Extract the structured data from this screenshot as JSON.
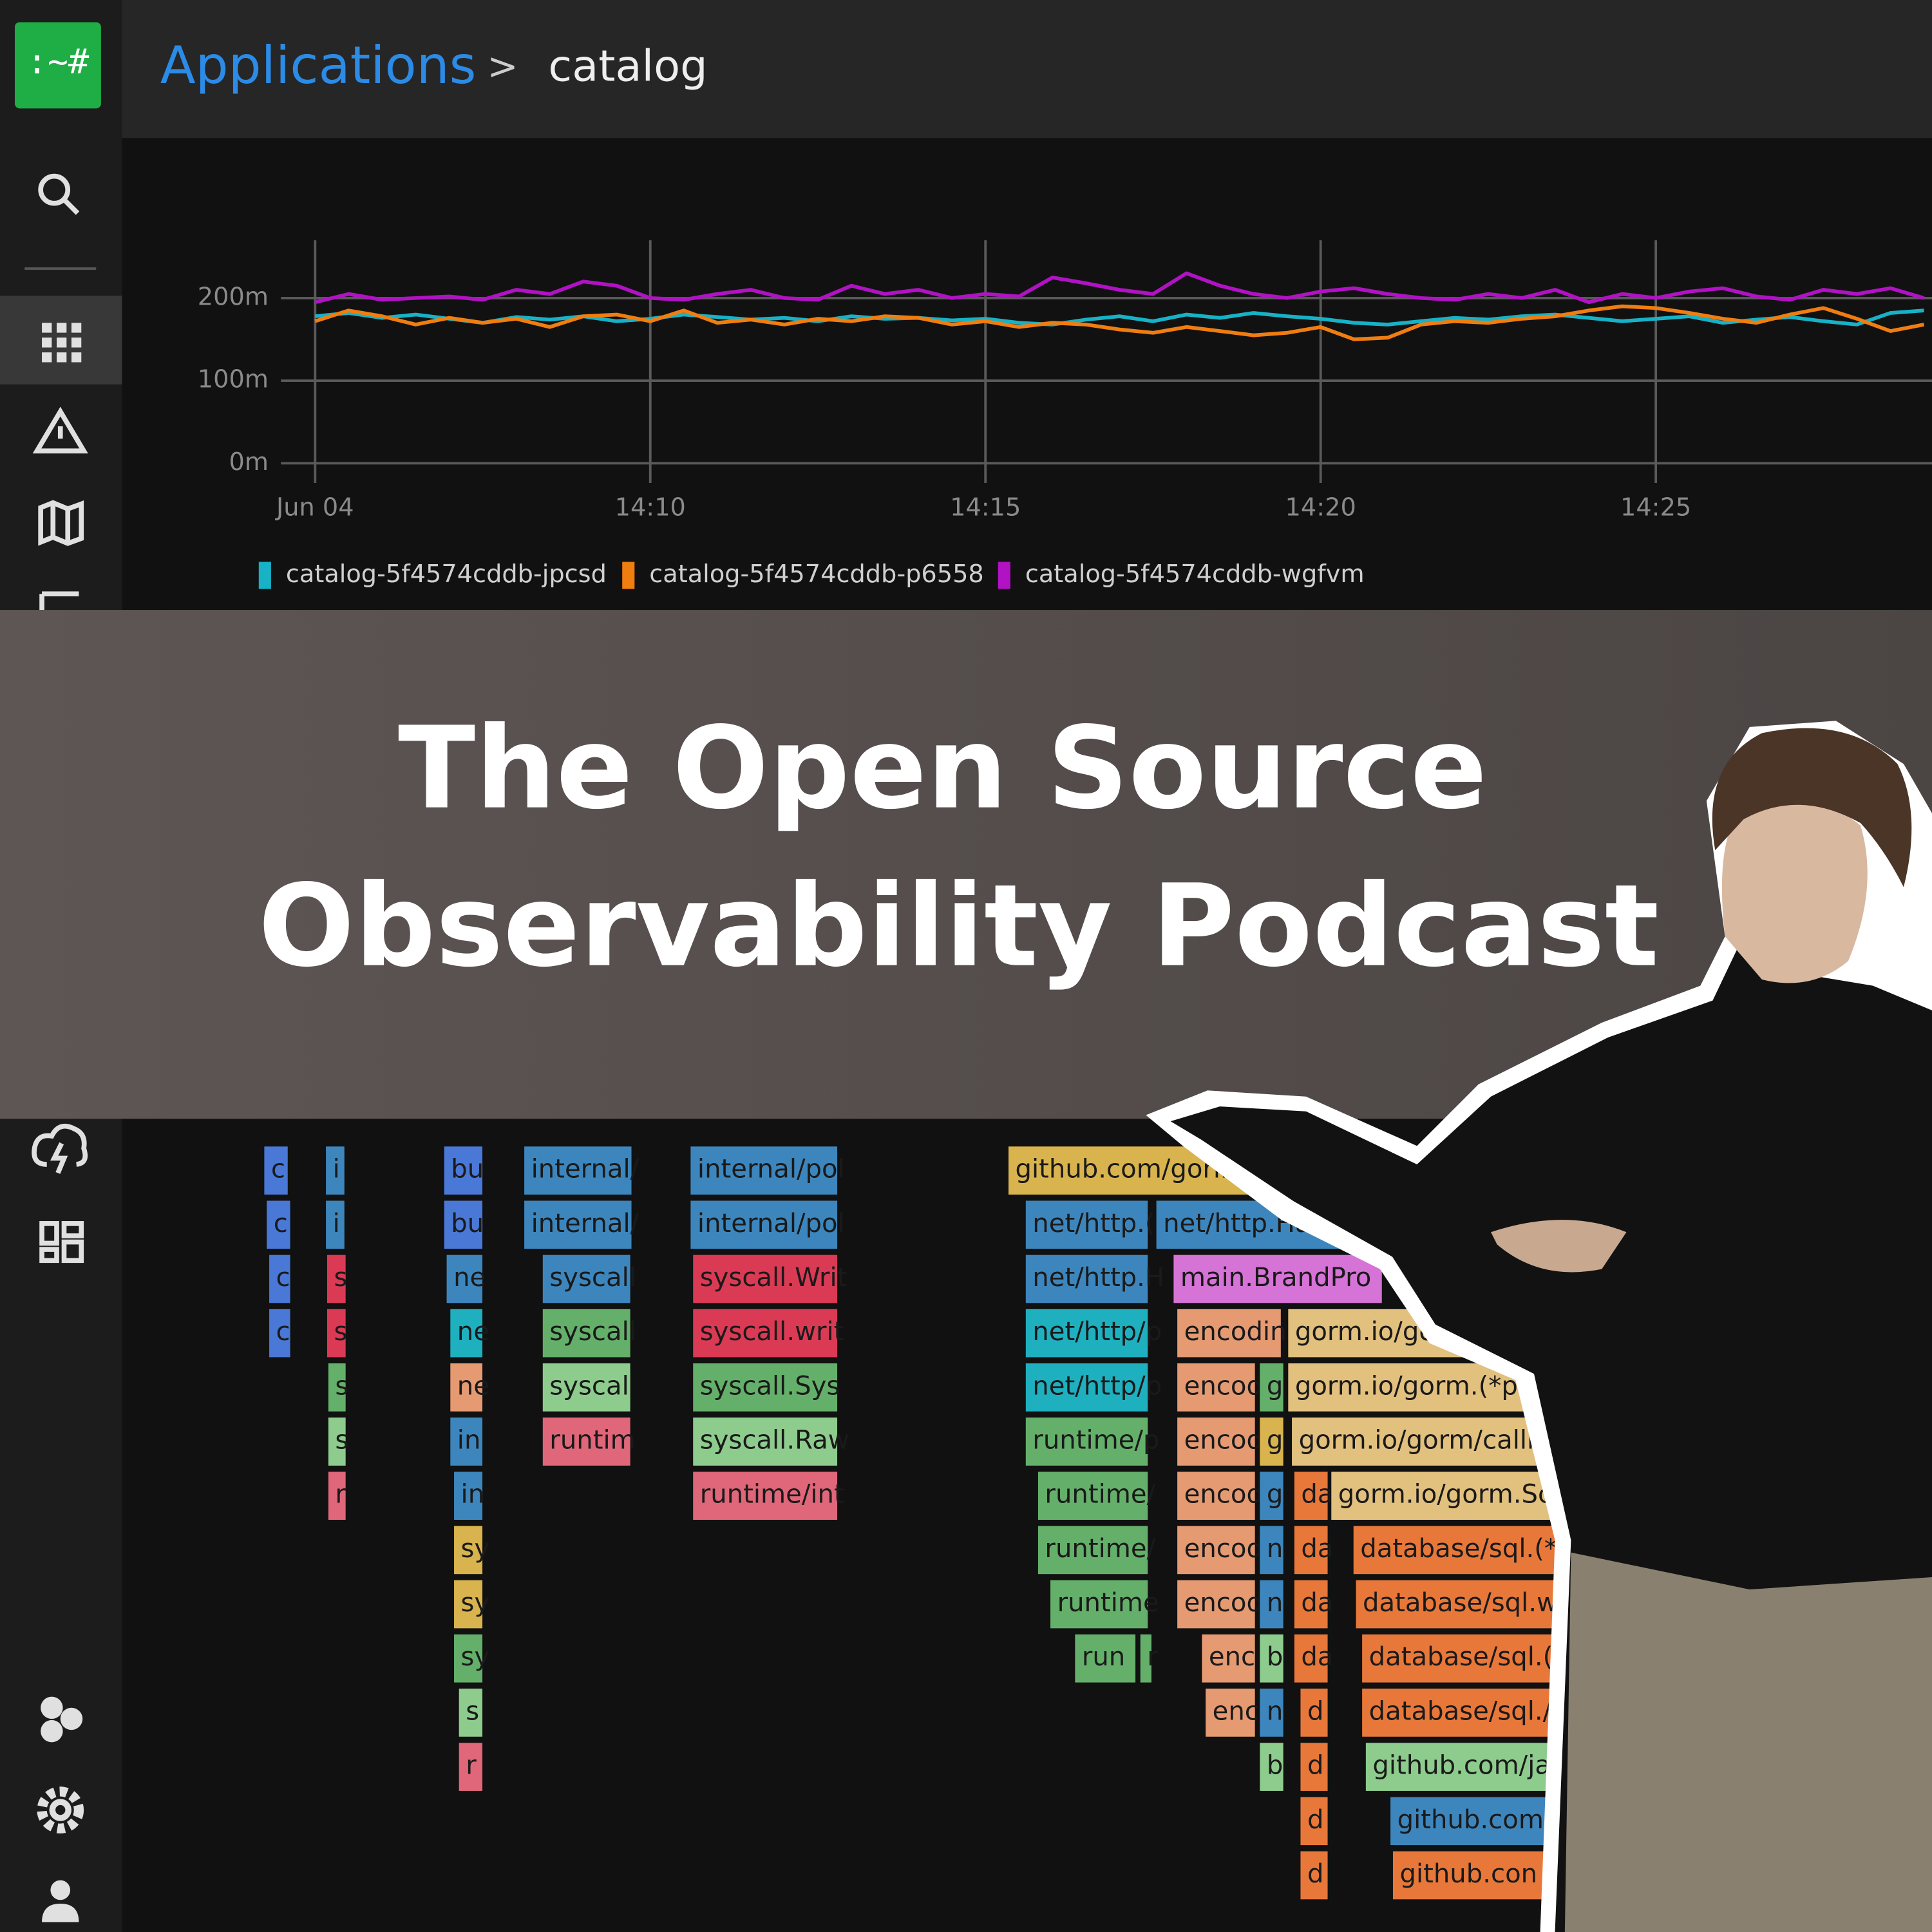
{
  "logo": ":~#",
  "header": {
    "breadcrumb": [
      "Applications",
      ">",
      "catalog"
    ]
  },
  "chart_data": {
    "type": "line",
    "x": [
      5,
      5.5,
      6,
      6.5,
      7,
      7.5,
      8,
      8.5,
      9,
      9.5,
      10,
      10.5,
      11,
      11.5,
      12,
      12.5,
      13,
      13.5,
      14,
      14.5,
      15,
      15.5,
      16,
      16.5,
      17,
      17.5,
      18,
      18.5,
      19,
      19.5,
      20,
      20.5,
      21,
      21.5,
      22,
      22.5,
      23,
      23.5,
      24,
      24.5,
      25,
      25.5,
      26,
      26.5,
      27,
      27.5,
      28,
      28.5,
      29
    ],
    "xlim": [
      4.49,
      29.12
    ],
    "xticks": [
      {
        "value": 5,
        "label": "Jun 04"
      },
      {
        "value": 10,
        "label": "14:10"
      },
      {
        "value": 15,
        "label": "14:15"
      },
      {
        "value": 20,
        "label": "14:20"
      },
      {
        "value": 25,
        "label": "14:25"
      }
    ],
    "ylim": [
      0,
      270
    ],
    "yticks": [
      {
        "value": 0,
        "label": "0m"
      },
      {
        "value": 100,
        "label": "100m"
      },
      {
        "value": 200,
        "label": "200m"
      }
    ],
    "grid": true,
    "legend": "bottom",
    "series": [
      {
        "name": "catalog-5f4574cddb-jpcsd",
        "color": "#17b2c6",
        "values": [
          178,
          182,
          176,
          180,
          175,
          170,
          177,
          174,
          178,
          172,
          175,
          180,
          177,
          174,
          176,
          172,
          178,
          175,
          176,
          173,
          175,
          170,
          168,
          174,
          178,
          172,
          180,
          176,
          182,
          178,
          175,
          170,
          168,
          172,
          176,
          174,
          178,
          180,
          176,
          172,
          175,
          178,
          170,
          174,
          177,
          172,
          168,
          182,
          185
        ]
      },
      {
        "name": "catalog-5f4574cddb-p6558",
        "color": "#f07d10",
        "values": [
          172,
          185,
          178,
          168,
          176,
          170,
          175,
          165,
          178,
          180,
          172,
          185,
          170,
          174,
          168,
          175,
          172,
          178,
          176,
          168,
          172,
          165,
          170,
          168,
          162,
          158,
          165,
          160,
          155,
          158,
          165,
          150,
          152,
          168,
          172,
          170,
          175,
          178,
          185,
          190,
          188,
          182,
          175,
          170,
          180,
          188,
          175,
          160,
          168
        ]
      },
      {
        "name": "catalog-5f4574cddb-wgfvm",
        "color": "#b012c4",
        "values": [
          195,
          205,
          198,
          200,
          202,
          198,
          210,
          205,
          220,
          215,
          200,
          198,
          205,
          210,
          200,
          198,
          215,
          205,
          210,
          200,
          205,
          202,
          225,
          218,
          210,
          205,
          230,
          215,
          205,
          200,
          208,
          212,
          205,
          200,
          198,
          205,
          200,
          210,
          195,
          205,
          200,
          208,
          212,
          202,
          198,
          210,
          205,
          212,
          200
        ]
      }
    ]
  },
  "flamegraph": {
    "blocks": [
      "c",
      "c",
      "c",
      "c",
      "i",
      "i",
      "s",
      "s",
      "s",
      "s",
      "r",
      "bu",
      "internal/",
      "internal/pol",
      "github.com/gorilla/mu",
      "bu",
      "internal/",
      "internal/pol",
      "net/http.(",
      "net/http.Han",
      "ne",
      "syscall",
      "syscall.Writ",
      "net/http.H",
      "main.BrandPro",
      "ne",
      "syscall",
      "syscall.writ",
      "net/http/p",
      "encodin",
      "gorm.io/gorm.(*DB).F",
      "ne",
      "syscal",
      "syscall.Sys",
      "net/http/p",
      "encod",
      "g",
      "gorm.io/gorm.(*proce",
      "in",
      "runtim",
      "syscall.Raw",
      "runtime/p",
      "encod",
      "g",
      "gorm.io/gorm/callba",
      "in",
      "runtime/int",
      "runtime/",
      "encod",
      "g",
      "da",
      "gorm.io/gorm.Scan",
      "sy",
      "runtime/",
      "encod",
      "n",
      "da",
      "database/sql.(*Ro",
      "sy",
      "runtime",
      "encod",
      "n",
      "da",
      "database/sql.wit",
      "sy",
      "run",
      "r",
      "enc",
      "b",
      "da",
      "database/sql.(*",
      "s",
      "enc",
      "n",
      "d",
      "database/sql./",
      "r",
      "b",
      "d",
      "github.com/ja",
      "d",
      "github.com",
      "d",
      "github.con"
    ]
  },
  "banner": {
    "title_lines": [
      "The Open Source",
      "Observability Podcast"
    ]
  }
}
